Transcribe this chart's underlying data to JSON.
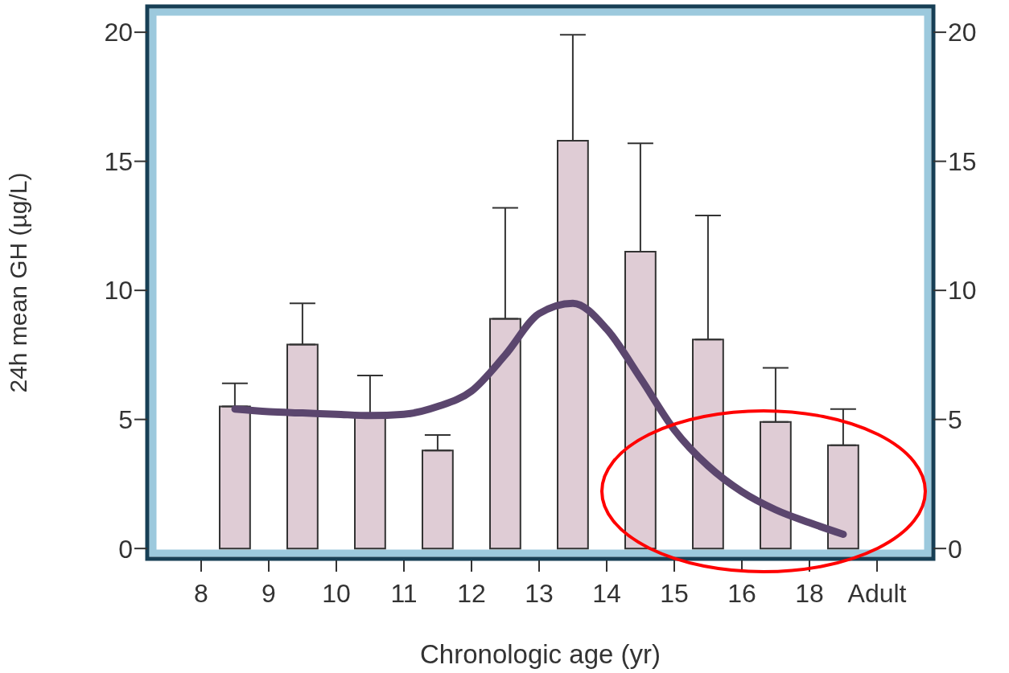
{
  "chart_data": {
    "type": "bar",
    "xlabel": "Chronologic age (yr)",
    "ylabel": "24h mean GH (µg/L)",
    "categories": [
      "8",
      null,
      "9",
      null,
      "10",
      null,
      "11",
      null,
      "12",
      null,
      "13",
      null,
      "14",
      null,
      "15",
      null,
      "16",
      null,
      "18",
      null,
      "Adult"
    ],
    "ylim": [
      -0.4,
      21
    ],
    "yticks": [
      0,
      5,
      10,
      15,
      20
    ],
    "y2lim": [
      -0.4,
      21
    ],
    "y2ticks": [
      0,
      5,
      10,
      15,
      20
    ],
    "series": [
      {
        "color": "#dfccd5",
        "values": [
          null,
          5.5,
          null,
          7.9,
          null,
          5.1,
          null,
          3.8,
          null,
          8.9,
          null,
          15.8,
          null,
          11.5,
          null,
          8.1,
          null,
          4.9,
          null,
          4.0,
          null
        ],
        "errors": [
          null,
          [
            5.5,
            6.4
          ],
          null,
          [
            7.9,
            9.5
          ],
          null,
          [
            5.1,
            6.7
          ],
          null,
          [
            3.8,
            4.4
          ],
          null,
          [
            8.9,
            13.2
          ],
          null,
          [
            15.8,
            19.9
          ],
          null,
          [
            11.5,
            15.7
          ],
          null,
          [
            8.1,
            12.9
          ],
          null,
          [
            4.9,
            7.0
          ],
          null,
          [
            4.0,
            5.4
          ],
          null
        ]
      },
      {
        "type": "line",
        "color": "#5b466e",
        "values": [
          null,
          5.4,
          5.3,
          5.25,
          5.2,
          5.15,
          5.2,
          5.5,
          6.1,
          7.5,
          9.1,
          9.5,
          8.5,
          6.6,
          4.6,
          3.2,
          2.2,
          1.5,
          1.0,
          0.55,
          null
        ]
      }
    ]
  }
}
